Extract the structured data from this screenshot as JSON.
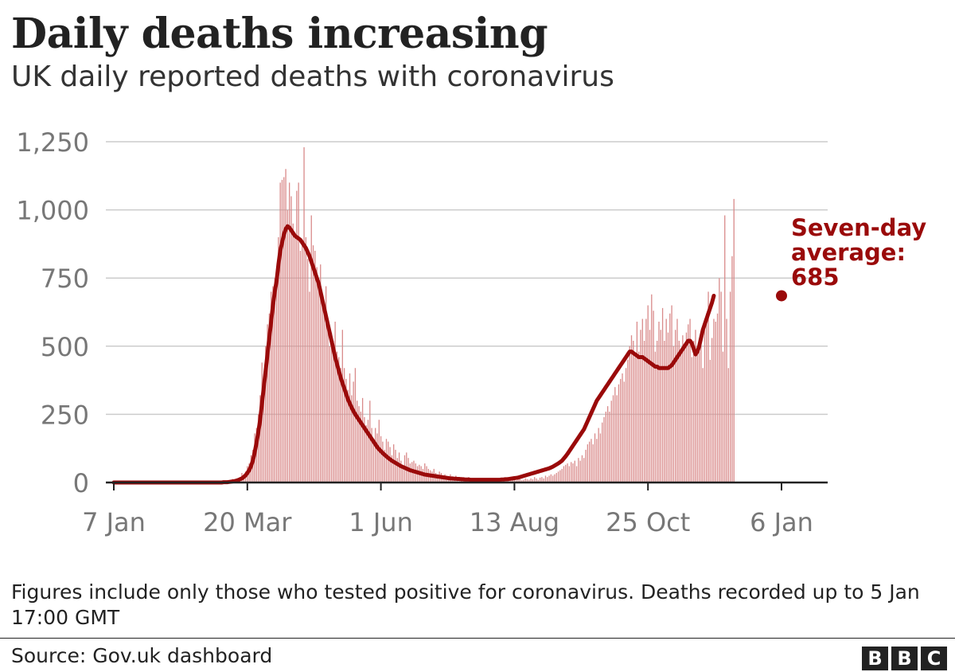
{
  "header": {
    "title": "Daily deaths increasing",
    "subtitle": "UK daily reported deaths with coronavirus"
  },
  "footer": {
    "note": "Figures include only those who tested positive for coronavirus. Deaths recorded up to 5 Jan 17:00 GMT",
    "source": "Source: Gov.uk dashboard",
    "logo_letters": [
      "B",
      "B",
      "C"
    ]
  },
  "colors": {
    "bars": "#d98a8a",
    "average_line": "#9a0a0a",
    "annotation": "#9a0a0a",
    "grid": "#cccccc",
    "axis": "#222222",
    "tick_text": "#777777"
  },
  "chart_data": {
    "type": "bar",
    "x_type": "date",
    "x_range": [
      "2020-01-07",
      "2021-01-06"
    ],
    "xticks": [
      {
        "date": "2020-01-07",
        "label": "7 Jan"
      },
      {
        "date": "2020-03-20",
        "label": "20 Mar"
      },
      {
        "date": "2020-06-01",
        "label": "1 Jun"
      },
      {
        "date": "2020-08-13",
        "label": "13 Aug"
      },
      {
        "date": "2020-10-25",
        "label": "25 Oct"
      },
      {
        "date": "2021-01-06",
        "label": "6 Jan"
      }
    ],
    "yticks": [
      0,
      250,
      500,
      750,
      1000,
      1250
    ],
    "ytick_labels": [
      "0",
      "250",
      "500",
      "750",
      "1,000",
      "1,250"
    ],
    "ylim": [
      0,
      1300
    ],
    "grid": true,
    "series": [
      {
        "kind": "bar",
        "start_date": "2020-01-07",
        "values": [
          0,
          0,
          0,
          0,
          0,
          0,
          0,
          0,
          0,
          0,
          0,
          0,
          0,
          0,
          0,
          0,
          0,
          0,
          0,
          0,
          0,
          0,
          0,
          0,
          0,
          0,
          0,
          0,
          0,
          0,
          0,
          0,
          0,
          0,
          0,
          0,
          0,
          0,
          0,
          0,
          0,
          0,
          0,
          0,
          0,
          0,
          0,
          0,
          0,
          0,
          0,
          0,
          0,
          0,
          0,
          0,
          0,
          1,
          0,
          0,
          2,
          1,
          3,
          4,
          6,
          13,
          8,
          10,
          12,
          20,
          35,
          30,
          40,
          60,
          70,
          100,
          120,
          180,
          200,
          250,
          320,
          440,
          380,
          500,
          580,
          620,
          700,
          720,
          750,
          760,
          900,
          1100,
          1110,
          1120,
          1150,
          1000,
          1100,
          1050,
          950,
          900,
          1070,
          1100,
          850,
          880,
          1230,
          900,
          820,
          700,
          980,
          870,
          850,
          790,
          740,
          800,
          680,
          640,
          720,
          600,
          500,
          550,
          520,
          590,
          480,
          460,
          420,
          560,
          420,
          380,
          340,
          400,
          320,
          370,
          420,
          300,
          280,
          260,
          310,
          240,
          210,
          230,
          300,
          200,
          160,
          200,
          180,
          230,
          170,
          150,
          120,
          160,
          150,
          130,
          100,
          140,
          120,
          90,
          110,
          80,
          60,
          100,
          110,
          90,
          70,
          75,
          80,
          70,
          60,
          65,
          60,
          50,
          70,
          60,
          50,
          45,
          40,
          50,
          35,
          30,
          40,
          35,
          25,
          30,
          25,
          20,
          30,
          20,
          15,
          25,
          20,
          15,
          20,
          15,
          12,
          15,
          20,
          12,
          10,
          15,
          12,
          15,
          10,
          12,
          10,
          10,
          12,
          8,
          10,
          12,
          8,
          10,
          15,
          10,
          8,
          12,
          10,
          15,
          8,
          10,
          12,
          10,
          8,
          10,
          12,
          8,
          10,
          15,
          12,
          10,
          15,
          12,
          20,
          15,
          10,
          18,
          20,
          15,
          25,
          20,
          25,
          30,
          25,
          30,
          35,
          40,
          45,
          50,
          60,
          65,
          70,
          60,
          75,
          70,
          80,
          60,
          90,
          80,
          100,
          90,
          120,
          140,
          150,
          160,
          140,
          180,
          160,
          200,
          180,
          220,
          240,
          260,
          280,
          260,
          300,
          320,
          350,
          320,
          360,
          380,
          400,
          370,
          420,
          450,
          500,
          540,
          520,
          460,
          590,
          480,
          560,
          600,
          520,
          600,
          650,
          560,
          690,
          630,
          480,
          520,
          590,
          560,
          640,
          520,
          600,
          550,
          620,
          650,
          500,
          560,
          600,
          520,
          480,
          540,
          500,
          550,
          580,
          600,
          460,
          520,
          560,
          500,
          480,
          550,
          420,
          600,
          620,
          700,
          450,
          530,
          600,
          590,
          620,
          750,
          700,
          480,
          980,
          600,
          420,
          700,
          830,
          1040
        ],
        "values_note": "approximate daily reported deaths"
      },
      {
        "kind": "line",
        "name": "Seven-day average",
        "start_date": "2020-01-07",
        "values": [
          0,
          0,
          0,
          0,
          0,
          0,
          0,
          0,
          0,
          0,
          0,
          0,
          0,
          0,
          0,
          0,
          0,
          0,
          0,
          0,
          0,
          0,
          0,
          0,
          0,
          0,
          0,
          0,
          0,
          0,
          0,
          0,
          0,
          0,
          0,
          0,
          0,
          0,
          0,
          0,
          0,
          0,
          0,
          0,
          0,
          0,
          0,
          0,
          0,
          0,
          0,
          0,
          0,
          0,
          0,
          0,
          0,
          0,
          0,
          0,
          1,
          1,
          1,
          2,
          3,
          4,
          5,
          7,
          9,
          12,
          15,
          20,
          26,
          35,
          45,
          60,
          80,
          110,
          145,
          185,
          230,
          290,
          350,
          410,
          470,
          530,
          590,
          650,
          700,
          740,
          800,
          850,
          880,
          910,
          930,
          940,
          935,
          925,
          915,
          905,
          900,
          895,
          890,
          880,
          870,
          860,
          845,
          830,
          810,
          790,
          770,
          750,
          730,
          700,
          670,
          640,
          610,
          580,
          550,
          520,
          490,
          460,
          435,
          410,
          385,
          365,
          345,
          325,
          305,
          290,
          275,
          262,
          250,
          240,
          230,
          220,
          210,
          200,
          190,
          180,
          170,
          160,
          150,
          140,
          130,
          122,
          115,
          108,
          102,
          96,
          90,
          85,
          80,
          76,
          72,
          68,
          64,
          60,
          57,
          54,
          51,
          48,
          45,
          43,
          41,
          39,
          37,
          35,
          33,
          31,
          29,
          28,
          27,
          26,
          25,
          24,
          23,
          22,
          21,
          20,
          19,
          18,
          17,
          16,
          15,
          15,
          14,
          14,
          13,
          13,
          12,
          12,
          11,
          11,
          11,
          10,
          10,
          10,
          10,
          10,
          10,
          10,
          10,
          10,
          10,
          10,
          10,
          10,
          10,
          10,
          10,
          10,
          11,
          11,
          12,
          12,
          13,
          14,
          15,
          16,
          17,
          18,
          20,
          22,
          24,
          26,
          28,
          30,
          32,
          34,
          36,
          38,
          40,
          42,
          44,
          46,
          48,
          50,
          52,
          55,
          58,
          62,
          66,
          70,
          75,
          80,
          88,
          96,
          105,
          115,
          125,
          135,
          145,
          155,
          165,
          175,
          185,
          195,
          210,
          225,
          240,
          255,
          270,
          285,
          300,
          310,
          320,
          330,
          340,
          350,
          360,
          370,
          380,
          390,
          400,
          410,
          420,
          430,
          440,
          450,
          460,
          470,
          480,
          480,
          475,
          470,
          465,
          460,
          460,
          460,
          455,
          450,
          445,
          440,
          435,
          430,
          425,
          425,
          420,
          420,
          420,
          420,
          420,
          420,
          425,
          430,
          440,
          450,
          460,
          470,
          480,
          490,
          500,
          510,
          520,
          520,
          510,
          490,
          470,
          480,
          500,
          530,
          560,
          580,
          600,
          620,
          640,
          660,
          685
        ],
        "values_note": "approximate seven-day rolling average"
      }
    ],
    "annotation": {
      "lines": [
        "Seven-day",
        "average:",
        "685"
      ],
      "value": 685,
      "date": "2021-01-06"
    }
  }
}
